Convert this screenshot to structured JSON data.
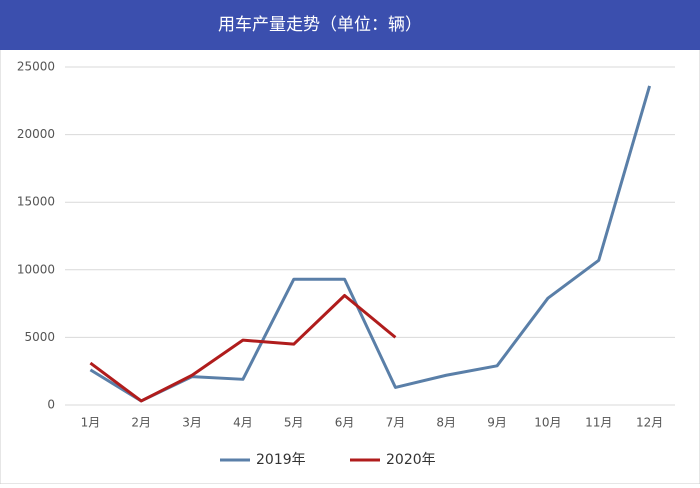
{
  "chart_data": {
    "type": "line",
    "title": "用车产量走势（单位：辆）",
    "categories": [
      "1月",
      "2月",
      "3月",
      "4月",
      "5月",
      "6月",
      "7月",
      "8月",
      "9月",
      "10月",
      "11月",
      "12月"
    ],
    "series": [
      {
        "name": "2019年",
        "color": "#5a7fa8",
        "values": [
          2600,
          300,
          2100,
          1900,
          9300,
          9300,
          1300,
          2200,
          2900,
          7900,
          10700,
          23600
        ]
      },
      {
        "name": "2020年",
        "color": "#b01c1c",
        "values": [
          3100,
          300,
          2200,
          4800,
          4500,
          8100,
          5000,
          null,
          null,
          null,
          null,
          null
        ]
      }
    ],
    "ylim": [
      0,
      25000
    ],
    "yticks": [
      0,
      5000,
      10000,
      15000,
      20000,
      25000
    ],
    "grid": true,
    "legend": "bottom"
  }
}
